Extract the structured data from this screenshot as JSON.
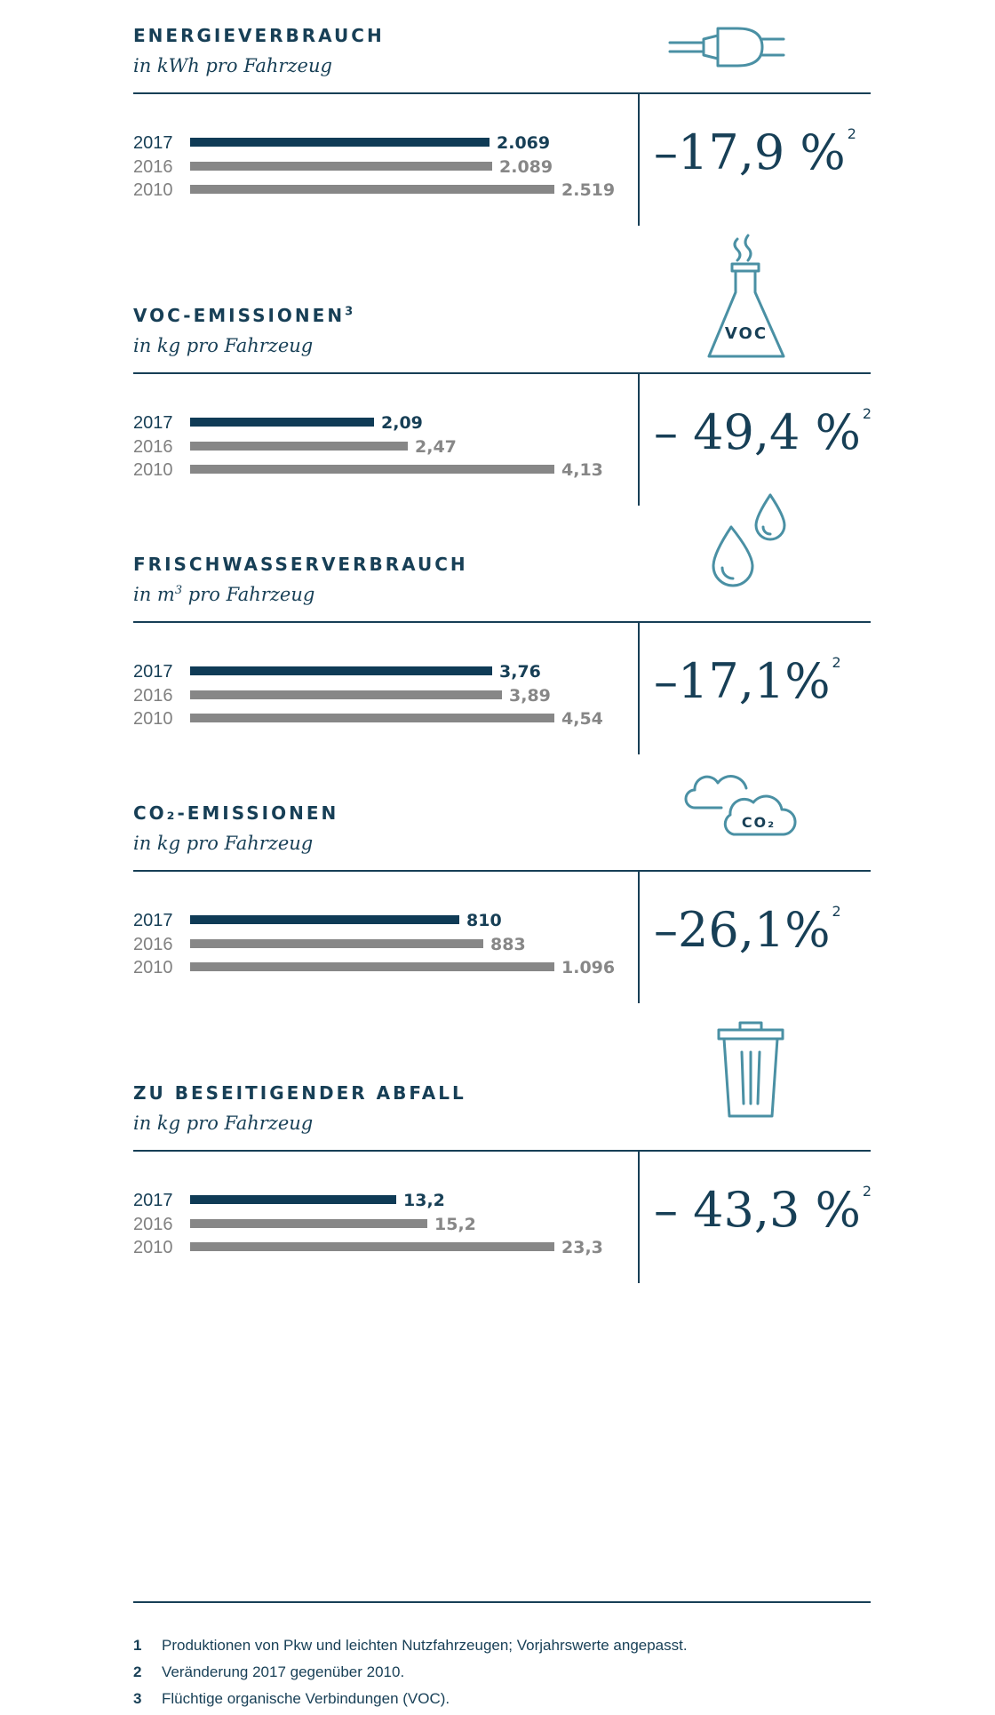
{
  "colors": {
    "primary": "#173f56",
    "bar_current": "#0f3b56",
    "bar_previous": "#878787",
    "icon": "#4a90a4"
  },
  "chart_data": [
    {
      "type": "bar",
      "title": "ENERGIEVERBRAUCH",
      "subtitle": "in kWh pro Fahrzeug",
      "categories": [
        "2017",
        "2016",
        "2010"
      ],
      "values": [
        2069,
        2089,
        2519
      ],
      "labels": [
        "2.069",
        "2.089",
        "2.519"
      ],
      "change": "–17,9 %",
      "change_note": "2",
      "icon": "plug-icon"
    },
    {
      "type": "bar",
      "title": "VOC-EMISSIONEN",
      "title_sup": "3",
      "subtitle": "in kg pro Fahrzeug",
      "categories": [
        "2017",
        "2016",
        "2010"
      ],
      "values": [
        2.09,
        2.47,
        4.13
      ],
      "labels": [
        "2,09",
        "2,47",
        "4,13"
      ],
      "change": "– 49,4 %",
      "change_note": "2",
      "icon": "flask-icon",
      "icon_text": "VOC"
    },
    {
      "type": "bar",
      "title": "FRISCHWASSERVERBRAUCH",
      "subtitle": "in m",
      "subtitle_sup": "3",
      "subtitle_rest": " pro Fahrzeug",
      "categories": [
        "2017",
        "2016",
        "2010"
      ],
      "values": [
        3.76,
        3.89,
        4.54
      ],
      "labels": [
        "3,76",
        "3,89",
        "4,54"
      ],
      "change": "–17,1%",
      "change_note": "2",
      "icon": "water-drops-icon"
    },
    {
      "type": "bar",
      "title": "CO₂-EMISSIONEN",
      "subtitle": "in kg pro Fahrzeug",
      "categories": [
        "2017",
        "2016",
        "2010"
      ],
      "values": [
        810,
        883,
        1096
      ],
      "labels": [
        "810",
        "883",
        "1.096"
      ],
      "change": "–26,1%",
      "change_note": "2",
      "icon": "clouds-icon",
      "icon_text": "CO₂"
    },
    {
      "type": "bar",
      "title": "ZU BESEITIGENDER ABFALL",
      "subtitle": "in kg pro Fahrzeug",
      "categories": [
        "2017",
        "2016",
        "2010"
      ],
      "values": [
        13.2,
        15.2,
        23.3
      ],
      "labels": [
        "13,2",
        "15,2",
        "23,3"
      ],
      "change": "– 43,3 %",
      "change_note": "2",
      "icon": "trash-can-icon"
    }
  ],
  "footnotes": [
    {
      "num": "1",
      "text": "Produktionen von Pkw und leichten Nutzfahrzeugen; Vorjahrswerte angepasst."
    },
    {
      "num": "2",
      "text": "Veränderung 2017 gegenüber 2010."
    },
    {
      "num": "3",
      "text": "Flüchtige organische Verbindungen (VOC)."
    }
  ]
}
